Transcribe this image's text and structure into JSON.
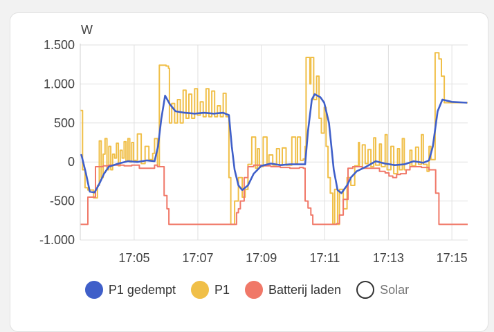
{
  "chart_data": {
    "type": "line",
    "ylabel": "W",
    "ylim": [
      -1000,
      1500
    ],
    "yticks": [
      -1000,
      -500,
      0,
      500,
      1000,
      1500
    ],
    "ytick_labels": [
      "-1.000",
      "-500",
      "0",
      "500",
      "1.000",
      "1.500"
    ],
    "xlim": [
      17.055,
      17.2583
    ],
    "xticks": [
      17.0833,
      17.1167,
      17.15,
      17.1833,
      17.2167,
      17.25
    ],
    "xtick_labels": [
      "17:05",
      "17:07",
      "17:09",
      "17:11",
      "17:13",
      "17:15"
    ],
    "grid": true,
    "legend_position": "bottom",
    "series": [
      {
        "name": "P1 gedempt",
        "color": "#3f5fc9",
        "step": false,
        "points": [
          [
            17.0555,
            100
          ],
          [
            17.058,
            -150
          ],
          [
            17.06,
            -380
          ],
          [
            17.0625,
            -390
          ],
          [
            17.065,
            -280
          ],
          [
            17.0675,
            -150
          ],
          [
            17.07,
            -60
          ],
          [
            17.075,
            -20
          ],
          [
            17.08,
            10
          ],
          [
            17.085,
            0
          ],
          [
            17.09,
            20
          ],
          [
            17.094,
            10
          ],
          [
            17.0958,
            200
          ],
          [
            17.0975,
            550
          ],
          [
            17.0995,
            850
          ],
          [
            17.102,
            740
          ],
          [
            17.105,
            650
          ],
          [
            17.11,
            630
          ],
          [
            17.115,
            620
          ],
          [
            17.12,
            630
          ],
          [
            17.125,
            620
          ],
          [
            17.13,
            630
          ],
          [
            17.133,
            600
          ],
          [
            17.1345,
            200
          ],
          [
            17.136,
            -100
          ],
          [
            17.138,
            -300
          ],
          [
            17.14,
            -360
          ],
          [
            17.143,
            -300
          ],
          [
            17.146,
            -150
          ],
          [
            17.15,
            -50
          ],
          [
            17.155,
            -20
          ],
          [
            17.16,
            -40
          ],
          [
            17.165,
            -30
          ],
          [
            17.17,
            -30
          ],
          [
            17.173,
            -30
          ],
          [
            17.1745,
            400
          ],
          [
            17.1765,
            800
          ],
          [
            17.178,
            870
          ],
          [
            17.181,
            830
          ],
          [
            17.183,
            760
          ],
          [
            17.1855,
            500
          ],
          [
            17.188,
            -100
          ],
          [
            17.19,
            -360
          ],
          [
            17.192,
            -400
          ],
          [
            17.195,
            -300
          ],
          [
            17.197,
            -200
          ],
          [
            17.2,
            -120
          ],
          [
            17.205,
            -60
          ],
          [
            17.21,
            10
          ],
          [
            17.215,
            -20
          ],
          [
            17.22,
            -40
          ],
          [
            17.225,
            -30
          ],
          [
            17.23,
            10
          ],
          [
            17.235,
            -10
          ],
          [
            17.238,
            20
          ],
          [
            17.24,
            200
          ],
          [
            17.2425,
            650
          ],
          [
            17.245,
            800
          ],
          [
            17.25,
            770
          ],
          [
            17.258,
            760
          ]
        ]
      },
      {
        "name": "P1",
        "color": "#f0bf48",
        "step": true,
        "points": [
          [
            17.0552,
            660
          ],
          [
            17.0562,
            -100
          ],
          [
            17.0575,
            -330
          ],
          [
            17.059,
            -360
          ],
          [
            17.062,
            -460
          ],
          [
            17.064,
            -300
          ],
          [
            17.065,
            270
          ],
          [
            17.066,
            -200
          ],
          [
            17.067,
            100
          ],
          [
            17.068,
            300
          ],
          [
            17.069,
            -100
          ],
          [
            17.07,
            200
          ],
          [
            17.071,
            -100
          ],
          [
            17.072,
            100
          ],
          [
            17.073,
            50
          ],
          [
            17.074,
            240
          ],
          [
            17.075,
            -50
          ],
          [
            17.076,
            150
          ],
          [
            17.077,
            50
          ],
          [
            17.078,
            260
          ],
          [
            17.079,
            10
          ],
          [
            17.08,
            300
          ],
          [
            17.081,
            0
          ],
          [
            17.082,
            250
          ],
          [
            17.083,
            20
          ],
          [
            17.085,
            360
          ],
          [
            17.087,
            -20
          ],
          [
            17.089,
            200
          ],
          [
            17.091,
            30
          ],
          [
            17.093,
            110
          ],
          [
            17.094,
            300
          ],
          [
            17.0955,
            -60
          ],
          [
            17.0965,
            1240
          ],
          [
            17.1,
            1230
          ],
          [
            17.1013,
            1200
          ],
          [
            17.1018,
            500
          ],
          [
            17.103,
            750
          ],
          [
            17.1045,
            500
          ],
          [
            17.106,
            800
          ],
          [
            17.1075,
            500
          ],
          [
            17.109,
            920
          ],
          [
            17.1105,
            560
          ],
          [
            17.112,
            870
          ],
          [
            17.1135,
            560
          ],
          [
            17.115,
            940
          ],
          [
            17.1165,
            600
          ],
          [
            17.118,
            770
          ],
          [
            17.1195,
            580
          ],
          [
            17.121,
            940
          ],
          [
            17.1225,
            580
          ],
          [
            17.124,
            910
          ],
          [
            17.1255,
            580
          ],
          [
            17.127,
            720
          ],
          [
            17.1285,
            580
          ],
          [
            17.13,
            880
          ],
          [
            17.1315,
            580
          ],
          [
            17.133,
            -200
          ],
          [
            17.134,
            -800
          ],
          [
            17.136,
            -500
          ],
          [
            17.138,
            -200
          ],
          [
            17.14,
            -450
          ],
          [
            17.1415,
            -350
          ],
          [
            17.143,
            -30
          ],
          [
            17.145,
            320
          ],
          [
            17.147,
            -80
          ],
          [
            17.148,
            170
          ],
          [
            17.149,
            -60
          ],
          [
            17.151,
            320
          ],
          [
            17.153,
            -40
          ],
          [
            17.154,
            90
          ],
          [
            17.156,
            -40
          ],
          [
            17.158,
            170
          ],
          [
            17.1595,
            -40
          ],
          [
            17.161,
            180
          ],
          [
            17.163,
            -40
          ],
          [
            17.166,
            320
          ],
          [
            17.168,
            -20
          ],
          [
            17.169,
            320
          ],
          [
            17.1705,
            20
          ],
          [
            17.172,
            40
          ],
          [
            17.173,
            200
          ],
          [
            17.1735,
            1340
          ],
          [
            17.1755,
            1000
          ],
          [
            17.176,
            1340
          ],
          [
            17.1775,
            800
          ],
          [
            17.179,
            1100
          ],
          [
            17.1803,
            560
          ],
          [
            17.1815,
            370
          ],
          [
            17.183,
            700
          ],
          [
            17.184,
            200
          ],
          [
            17.185,
            -200
          ],
          [
            17.1862,
            -400
          ],
          [
            17.1875,
            -790
          ],
          [
            17.1885,
            -350
          ],
          [
            17.19,
            -800
          ],
          [
            17.191,
            -350
          ],
          [
            17.193,
            -600
          ],
          [
            17.195,
            -200
          ],
          [
            17.197,
            -300
          ],
          [
            17.199,
            -50
          ],
          [
            17.201,
            250
          ],
          [
            17.2015,
            -60
          ],
          [
            17.203,
            220
          ],
          [
            17.2045,
            -20
          ],
          [
            17.206,
            160
          ],
          [
            17.2075,
            -60
          ],
          [
            17.209,
            310
          ],
          [
            17.21,
            -40
          ],
          [
            17.212,
            230
          ],
          [
            17.213,
            -60
          ],
          [
            17.215,
            350
          ],
          [
            17.216,
            -100
          ],
          [
            17.218,
            200
          ],
          [
            17.2195,
            -150
          ],
          [
            17.2215,
            170
          ],
          [
            17.2225,
            -100
          ],
          [
            17.224,
            300
          ],
          [
            17.225,
            -100
          ],
          [
            17.228,
            150
          ],
          [
            17.229,
            -50
          ],
          [
            17.231,
            190
          ],
          [
            17.2325,
            -30
          ],
          [
            17.234,
            350
          ],
          [
            17.235,
            -30
          ],
          [
            17.237,
            -120
          ],
          [
            17.238,
            200
          ],
          [
            17.239,
            30
          ],
          [
            17.2412,
            1400
          ],
          [
            17.2432,
            1320
          ],
          [
            17.2445,
            1100
          ],
          [
            17.246,
            760
          ],
          [
            17.2583,
            760
          ]
        ]
      },
      {
        "name": "Batterij laden",
        "color": "#f07868",
        "step": true,
        "points": [
          [
            17.0552,
            -800
          ],
          [
            17.059,
            -450
          ],
          [
            17.061,
            -450
          ],
          [
            17.063,
            -60
          ],
          [
            17.067,
            -50
          ],
          [
            17.07,
            -40
          ],
          [
            17.077,
            -40
          ],
          [
            17.078,
            -50
          ],
          [
            17.082,
            -40
          ],
          [
            17.086,
            -80
          ],
          [
            17.094,
            -40
          ],
          [
            17.0955,
            -60
          ],
          [
            17.097,
            -60
          ],
          [
            17.099,
            -430
          ],
          [
            17.1005,
            -600
          ],
          [
            17.1015,
            -800
          ],
          [
            17.115,
            -800
          ],
          [
            17.133,
            -800
          ],
          [
            17.135,
            -800
          ],
          [
            17.137,
            -650
          ],
          [
            17.138,
            -600
          ],
          [
            17.139,
            -500
          ],
          [
            17.141,
            -200
          ],
          [
            17.143,
            -60
          ],
          [
            17.146,
            -40
          ],
          [
            17.15,
            -50
          ],
          [
            17.155,
            -60
          ],
          [
            17.16,
            -70
          ],
          [
            17.165,
            -80
          ],
          [
            17.17,
            -70
          ],
          [
            17.172,
            -80
          ],
          [
            17.173,
            -500
          ],
          [
            17.1745,
            -590
          ],
          [
            17.176,
            -680
          ],
          [
            17.177,
            -800
          ],
          [
            17.185,
            -800
          ],
          [
            17.1895,
            -790
          ],
          [
            17.191,
            -680
          ],
          [
            17.193,
            -480
          ],
          [
            17.1955,
            -80
          ],
          [
            17.198,
            -60
          ],
          [
            17.203,
            -80
          ],
          [
            17.209,
            -80
          ],
          [
            17.212,
            -120
          ],
          [
            17.215,
            -140
          ],
          [
            17.217,
            -180
          ],
          [
            17.219,
            -200
          ],
          [
            17.221,
            -160
          ],
          [
            17.223,
            -150
          ],
          [
            17.226,
            -100
          ],
          [
            17.228,
            -60
          ],
          [
            17.231,
            -60
          ],
          [
            17.234,
            -70
          ],
          [
            17.238,
            -100
          ],
          [
            17.2415,
            -400
          ],
          [
            17.2432,
            -800
          ],
          [
            17.2583,
            -800
          ]
        ]
      },
      {
        "name": "Solar",
        "color": "#ffffff",
        "border": "#333333",
        "hidden": true,
        "points": []
      }
    ]
  }
}
